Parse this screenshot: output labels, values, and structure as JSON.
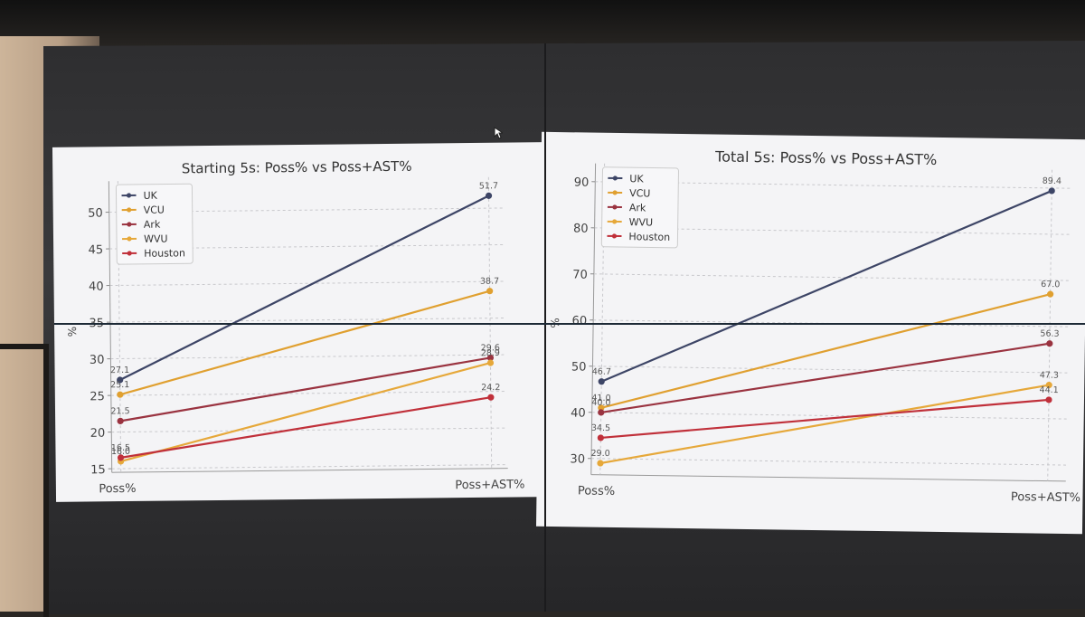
{
  "chart_data": [
    {
      "type": "line",
      "title": "Starting 5s: Poss% vs Poss+AST%",
      "ylabel": "%",
      "categories": [
        "Poss%",
        "Poss+AST%"
      ],
      "yticks": [
        15,
        20,
        25,
        30,
        35,
        40,
        45,
        50
      ],
      "ylim": [
        14.5,
        53
      ],
      "grid": true,
      "legend": "top-left",
      "series": [
        {
          "name": "UK",
          "color": "#3d4566",
          "values": [
            27.1,
            51.7
          ],
          "labels": [
            "27.1",
            "51.7"
          ]
        },
        {
          "name": "VCU",
          "color": "#e0a030",
          "values": [
            25.1,
            38.7
          ],
          "labels": [
            "25.1",
            "38.7"
          ]
        },
        {
          "name": "Ark",
          "color": "#9a3340",
          "values": [
            21.5,
            29.6
          ],
          "labels": [
            "21.5",
            "29.6"
          ]
        },
        {
          "name": "WVU",
          "color": "#e6a83a",
          "values": [
            16.0,
            28.9
          ],
          "labels": [
            "16.0",
            "28.9"
          ]
        },
        {
          "name": "Houston",
          "color": "#c0303a",
          "values": [
            16.5,
            24.2
          ],
          "labels": [
            "16.5",
            "24.2"
          ]
        }
      ]
    },
    {
      "type": "line",
      "title": "Total 5s: Poss% vs Poss+AST%",
      "ylabel": "%",
      "categories": [
        "Poss%",
        "Poss+AST%"
      ],
      "yticks": [
        30,
        40,
        50,
        60,
        70,
        80,
        90
      ],
      "ylim": [
        26.5,
        92
      ],
      "grid": true,
      "legend": "top-left",
      "series": [
        {
          "name": "UK",
          "color": "#3d4566",
          "values": [
            46.7,
            89.4
          ],
          "labels": [
            "46.7",
            "89.4"
          ]
        },
        {
          "name": "VCU",
          "color": "#e0a030",
          "values": [
            41.0,
            67.0
          ],
          "labels": [
            "41.0",
            "67.0"
          ]
        },
        {
          "name": "Ark",
          "color": "#9a3340",
          "values": [
            40.0,
            56.3
          ],
          "labels": [
            "40.0",
            "56.3"
          ]
        },
        {
          "name": "WVU",
          "color": "#e6a83a",
          "values": [
            29.0,
            47.3
          ],
          "labels": [
            "29.0",
            "47.3"
          ]
        },
        {
          "name": "Houston",
          "color": "#c0303a",
          "values": [
            34.5,
            44.1
          ],
          "labels": [
            "34.5",
            "44.1"
          ]
        }
      ]
    }
  ]
}
